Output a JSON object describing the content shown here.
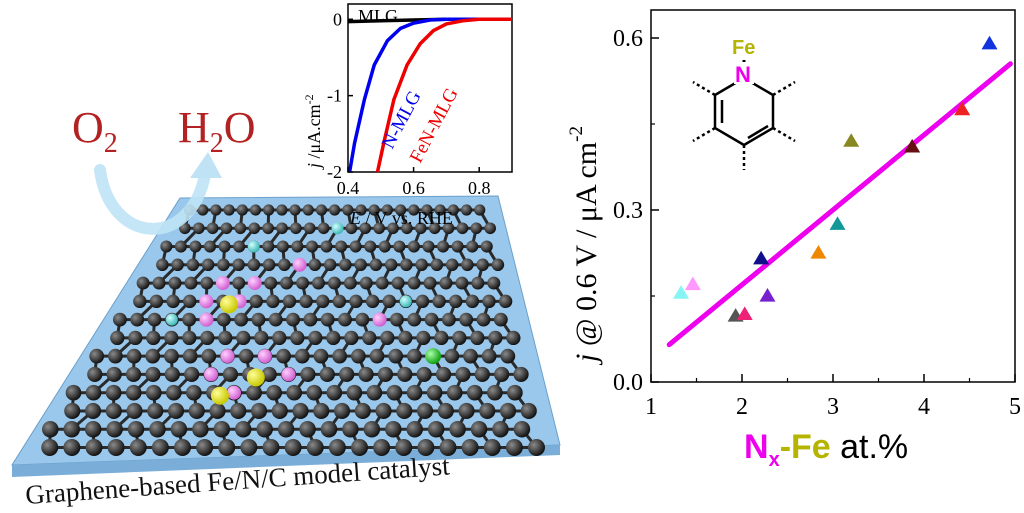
{
  "reaction": {
    "reactant": "O",
    "reactant_sub": "2",
    "product_pre": "H",
    "product_sub": "2",
    "product_post": "O"
  },
  "caption": "Graphene-based Fe/N/C model catalyst",
  "structure": {
    "fe_label": "Fe",
    "n_label": "N"
  },
  "colors": {
    "oxygen_red": "#b22222",
    "magenta": "#ee00ee",
    "olive": "#b5b500",
    "arrow": "#bfe3f5",
    "substrate": "#9ac8ec"
  },
  "chart_data": [
    {
      "type": "line",
      "title": "",
      "xlabel": {
        "italic": "E",
        "rest": " / V vs. RHE"
      },
      "ylabel": {
        "italic": "j",
        "rest": " /μA.cm",
        "sup": "-2"
      },
      "xlim": [
        0.4,
        0.9
      ],
      "ylim": [
        -2,
        0.2
      ],
      "xticks": [
        "0.4",
        "0.6",
        "0.8"
      ],
      "yticks": [
        "0",
        "-1",
        "-2"
      ],
      "series": [
        {
          "name": "MLG",
          "color": "#000000",
          "points": [
            [
              0.4,
              -0.03
            ],
            [
              0.5,
              -0.02
            ],
            [
              0.6,
              -0.01
            ],
            [
              0.7,
              0
            ],
            [
              0.8,
              0
            ],
            [
              0.9,
              0
            ]
          ]
        },
        {
          "name": "N-MLG",
          "color": "#0000ee",
          "points": [
            [
              0.405,
              -2.0
            ],
            [
              0.42,
              -1.62
            ],
            [
              0.45,
              -1.05
            ],
            [
              0.48,
              -0.6
            ],
            [
              0.52,
              -0.28
            ],
            [
              0.56,
              -0.12
            ],
            [
              0.6,
              -0.05
            ],
            [
              0.65,
              -0.01
            ],
            [
              0.7,
              0
            ],
            [
              0.9,
              0
            ]
          ]
        },
        {
          "name": "FeN-MLG",
          "color": "#ee0000",
          "points": [
            [
              0.49,
              -2.0
            ],
            [
              0.51,
              -1.6
            ],
            [
              0.54,
              -1.05
            ],
            [
              0.58,
              -0.6
            ],
            [
              0.62,
              -0.32
            ],
            [
              0.66,
              -0.15
            ],
            [
              0.7,
              -0.06
            ],
            [
              0.75,
              -0.02
            ],
            [
              0.8,
              0
            ],
            [
              0.9,
              0
            ]
          ]
        }
      ]
    },
    {
      "type": "scatter",
      "title": "",
      "xlabel": {
        "part1": "N",
        "sub": "x",
        "part2": "-Fe",
        "part3": " at.%"
      },
      "ylabel": {
        "italic": "j",
        "rest": " @ 0.6 V / μA cm",
        "sup": "-2"
      },
      "xlim": [
        1,
        5
      ],
      "ylim": [
        0,
        0.6
      ],
      "xticks": [
        "1",
        "2",
        "3",
        "4",
        "5"
      ],
      "yticks": [
        "0.0",
        "0.3",
        "0.6"
      ],
      "grid": false,
      "marker": "triangle",
      "points": [
        {
          "x": 1.33,
          "y": 0.155,
          "color": "#88f5f5"
        },
        {
          "x": 1.46,
          "y": 0.17,
          "color": "#ff99ff"
        },
        {
          "x": 1.93,
          "y": 0.115,
          "color": "#555555"
        },
        {
          "x": 2.03,
          "y": 0.118,
          "color": "#ee2277"
        },
        {
          "x": 2.21,
          "y": 0.215,
          "color": "#101088"
        },
        {
          "x": 2.28,
          "y": 0.15,
          "color": "#7722cc"
        },
        {
          "x": 2.84,
          "y": 0.225,
          "color": "#ee8800"
        },
        {
          "x": 3.05,
          "y": 0.275,
          "color": "#119999"
        },
        {
          "x": 3.2,
          "y": 0.42,
          "color": "#888822"
        },
        {
          "x": 3.87,
          "y": 0.41,
          "color": "#661111"
        },
        {
          "x": 4.42,
          "y": 0.475,
          "color": "#ee2222"
        },
        {
          "x": 4.72,
          "y": 0.59,
          "color": "#1133dd"
        }
      ],
      "fit": {
        "color": "#ee00ee",
        "from": [
          1.2,
          0.065
        ],
        "to": [
          4.95,
          0.555
        ]
      }
    }
  ]
}
